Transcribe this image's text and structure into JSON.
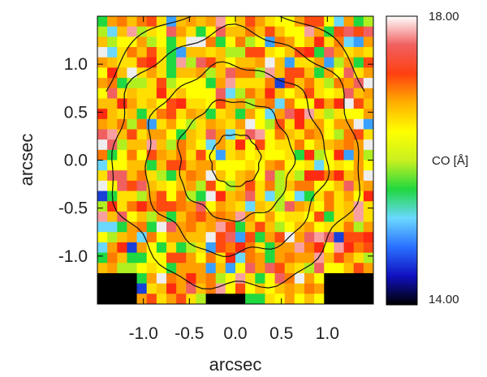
{
  "chart_data": {
    "type": "heatmap",
    "title": "",
    "xlabel": "arcsec",
    "ylabel": "arcsec",
    "xlim": [
      -1.5,
      1.5
    ],
    "ylim": [
      -1.5,
      1.5
    ],
    "xticks": [
      -1.0,
      -0.5,
      0.0,
      0.5,
      1.0
    ],
    "xtick_labels": [
      "-1.0",
      "-0.5",
      "0.0",
      "0.5",
      "1.0"
    ],
    "yticks": [
      -1.0,
      -0.5,
      0.0,
      0.5,
      1.0
    ],
    "ytick_labels": [
      "-1.0",
      "-0.5",
      "0.0",
      "0.5",
      "1.0"
    ],
    "colorbar": {
      "label": "CO [Å]",
      "min": 14.0,
      "max": 18.0,
      "min_label": "14.00",
      "max_label": "18.00",
      "colors": [
        "#000000",
        "#1010c0",
        "#2a70ff",
        "#6ad8ff",
        "#20d840",
        "#c8f020",
        "#ffff00",
        "#ffb000",
        "#ff4010",
        "#f06060",
        "#ffffff"
      ]
    },
    "grid": false,
    "contour_radii": [
      0.27,
      0.62,
      0.98,
      1.34
    ]
  }
}
